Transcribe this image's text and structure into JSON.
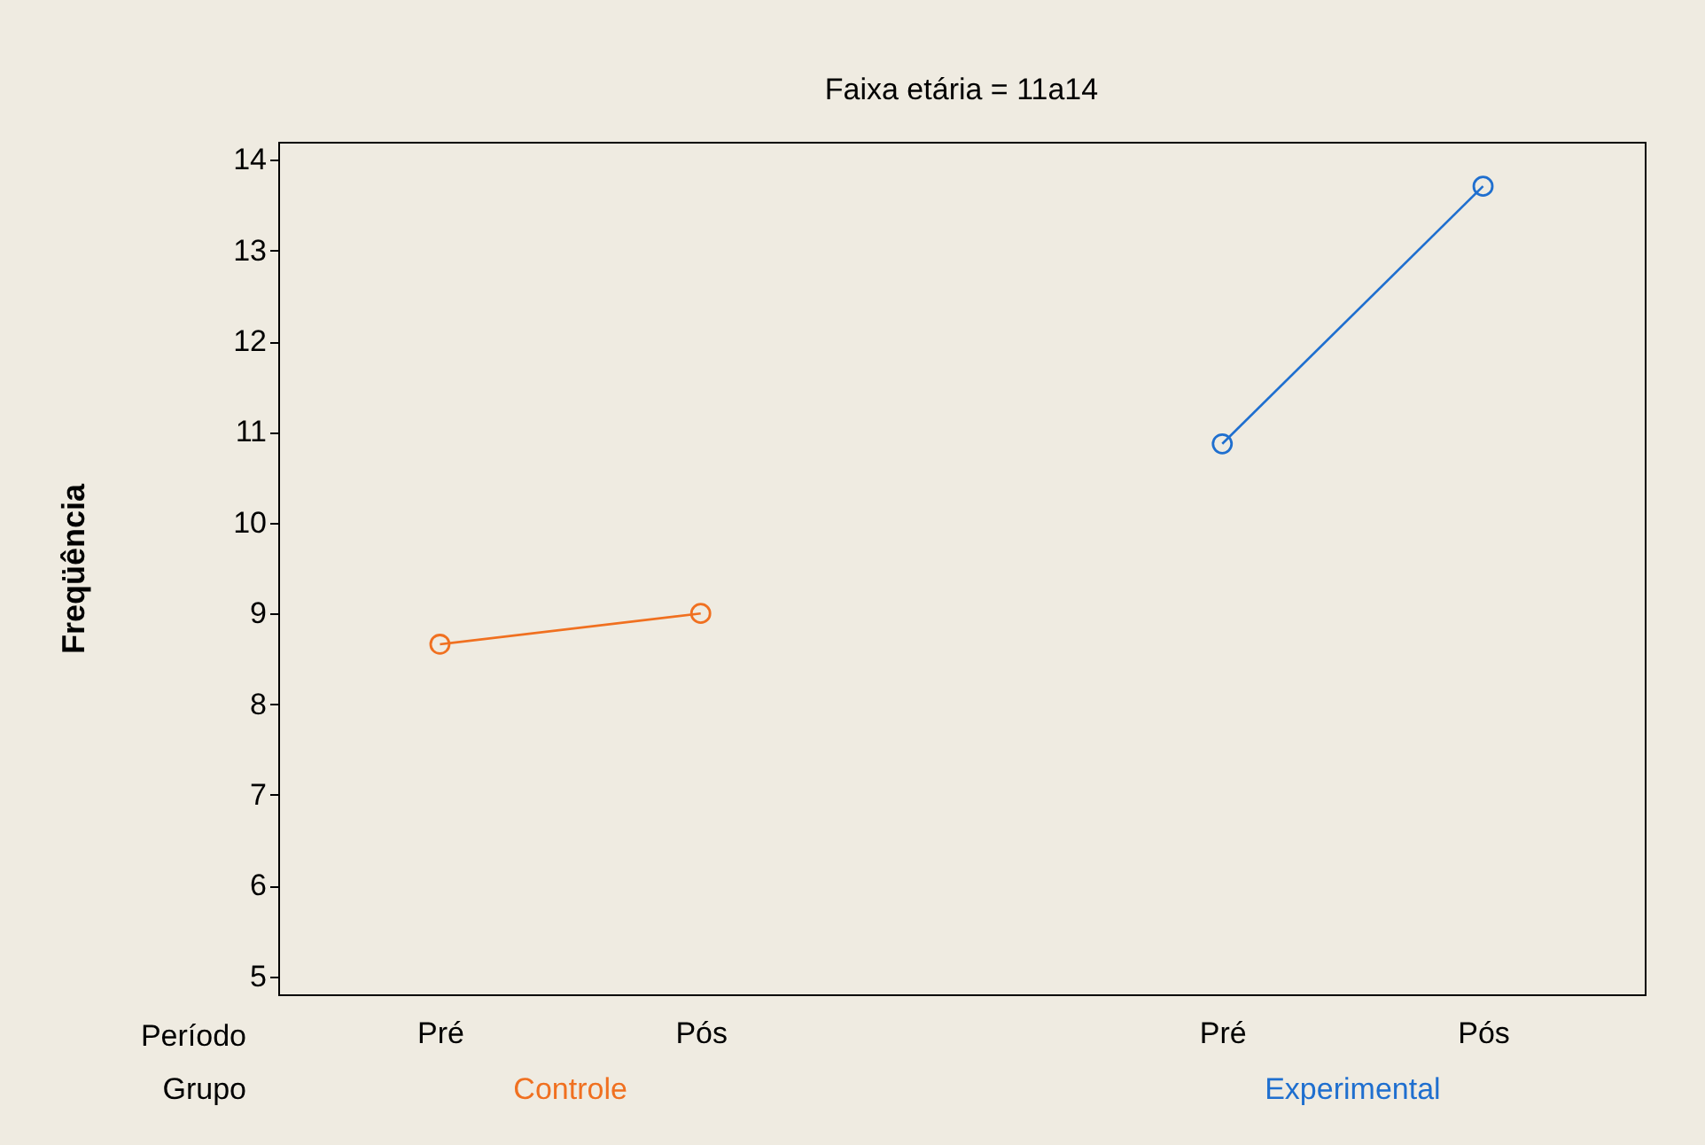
{
  "chart_data": {
    "type": "line",
    "title": "Faixa etária = 11a14",
    "ylabel": "Freqüência",
    "categories": [
      "Pré",
      "Pós",
      "Pré",
      "Pós"
    ],
    "series": [
      {
        "name": "Controle",
        "color": "#f07020",
        "values": [
          8.66,
          9.0,
          null,
          null
        ]
      },
      {
        "name": "Experimental",
        "color": "#1f6fcf",
        "values": [
          null,
          null,
          10.87,
          13.71
        ]
      }
    ],
    "annotations": [
      "Período",
      "Grupo"
    ],
    "ylim": [
      4.8,
      14.2
    ],
    "yticks": [
      5,
      6,
      7,
      8,
      9,
      10,
      11,
      12,
      13,
      14
    ],
    "marker": "circle",
    "grid": false,
    "legend": false
  }
}
